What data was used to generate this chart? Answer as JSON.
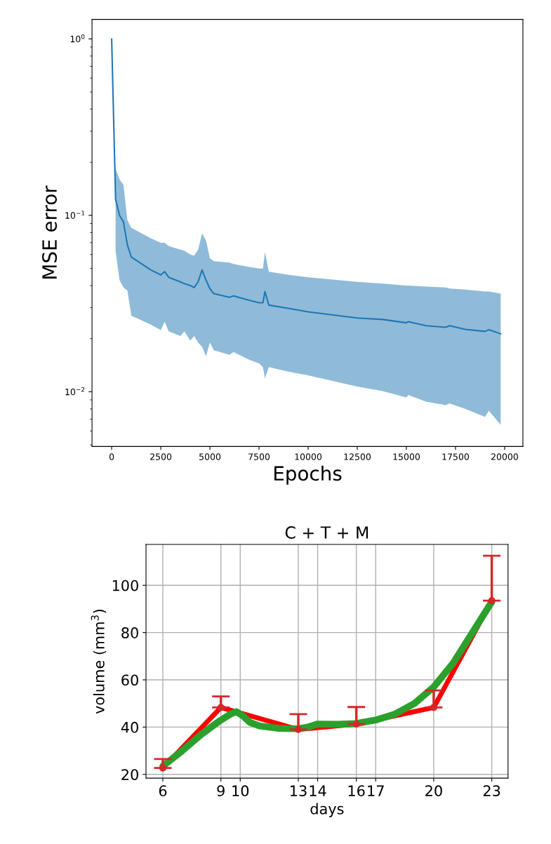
{
  "chart_data": [
    {
      "type": "line",
      "xlabel": "Epochs",
      "ylabel": "MSE error",
      "log": "y",
      "xlim": [
        -1000,
        20930
      ],
      "ylim": [
        0.0049,
        1.29
      ],
      "xticks": [
        0,
        2500,
        5000,
        7500,
        10000,
        12500,
        15000,
        17500,
        20000
      ],
      "yticks": [
        {
          "value": 1,
          "label": "10$^{0}$"
        },
        {
          "value": 0.1,
          "label": "10$^{−1}$"
        },
        {
          "value": 0.01,
          "label": "10$^{−2}$"
        }
      ],
      "grid": false,
      "x": [
        0,
        200,
        400,
        600,
        800,
        1000,
        2000,
        2500,
        2700,
        2900,
        3500,
        3700,
        4000,
        4200,
        4400,
        4600,
        4800,
        5000,
        5200,
        6000,
        6200,
        7000,
        7500,
        7700,
        7800,
        8000,
        9000,
        10000,
        12500,
        13800,
        15000,
        15100,
        16000,
        17000,
        17200,
        18000,
        19000,
        19200,
        19800
      ],
      "series": [
        {
          "color": "#1f77b4",
          "values": [
            1.0,
            0.123,
            0.1,
            0.092,
            0.068,
            0.058,
            0.049,
            0.046,
            0.048,
            0.0446,
            0.042,
            0.041,
            0.04,
            0.039,
            0.042,
            0.049,
            0.043,
            0.0384,
            0.036,
            0.0343,
            0.035,
            0.033,
            0.032,
            0.032,
            0.037,
            0.031,
            0.0297,
            0.0284,
            0.0262,
            0.0257,
            0.0246,
            0.025,
            0.0237,
            0.0232,
            0.0237,
            0.0226,
            0.022,
            0.0225,
            0.0213
          ],
          "lower": [
            null,
            0.063,
            0.043,
            0.039,
            0.0375,
            0.027,
            0.024,
            0.0224,
            0.025,
            0.022,
            0.0207,
            0.022,
            0.0195,
            0.0207,
            0.019,
            0.018,
            0.0159,
            0.019,
            0.0172,
            0.0162,
            0.0168,
            0.0152,
            0.0145,
            0.0138,
            0.0119,
            0.0138,
            0.013,
            0.0124,
            0.0107,
            0.0101,
            0.0093,
            0.0096,
            0.0088,
            0.0084,
            0.0086,
            0.008,
            0.0072,
            0.0078,
            0.0065
          ],
          "upper": [
            null,
            0.185,
            0.16,
            0.149,
            0.094,
            0.085,
            0.074,
            0.07,
            0.07,
            0.067,
            0.064,
            0.063,
            0.06,
            0.059,
            0.064,
            0.079,
            0.072,
            0.057,
            0.055,
            0.054,
            0.053,
            0.051,
            0.05,
            0.05,
            0.062,
            0.048,
            0.046,
            0.0446,
            0.042,
            0.041,
            0.04,
            0.04,
            0.0395,
            0.039,
            0.0385,
            0.038,
            0.037,
            0.037,
            0.036
          ]
        }
      ]
    },
    {
      "type": "line",
      "title": "C + T + M",
      "xlabel": "days",
      "ylabel": "volume (mm$^{3}$)",
      "xlim": [
        5.13,
        23.84
      ],
      "ylim": [
        18.4,
        117.3
      ],
      "xticks": [
        6,
        9,
        10,
        13,
        14,
        16,
        17,
        20,
        23
      ],
      "yticks": [
        20,
        40,
        60,
        80,
        100
      ],
      "grid": true,
      "series": [
        {
          "type": "line",
          "color": "#ff0000",
          "marker": "none",
          "x": [
            6,
            9,
            13,
            16,
            20,
            23
          ],
          "values": [
            22.7,
            48.3,
            39,
            41.3,
            48.3,
            93.5
          ]
        },
        {
          "type": "scatter",
          "color": "#d62728",
          "marker": "circle",
          "x": [
            6,
            9,
            13,
            16,
            20,
            23
          ],
          "values": [
            22.7,
            48.3,
            39,
            41.3,
            48.3,
            93.5
          ],
          "errors": [
            [
              22.7,
              26.5
            ],
            [
              48.3,
              53
            ],
            [
              39,
              45.5
            ],
            [
              41.3,
              48.5
            ],
            [
              48.3,
              55.5
            ],
            [
              93.5,
              112.5
            ]
          ]
        },
        {
          "type": "line",
          "color": "#2ca02c",
          "marker": "none",
          "x": [
            6,
            7,
            8,
            9,
            9.5,
            9.8,
            10.1,
            10.5,
            11,
            12,
            13,
            13.5,
            14,
            15,
            16,
            17,
            18,
            19,
            20,
            21,
            22,
            23
          ],
          "values": [
            23.5,
            30,
            37,
            43,
            45.5,
            46.5,
            45,
            42,
            40.5,
            39.5,
            39.3,
            40,
            41.3,
            41.2,
            41.5,
            43,
            45.5,
            50,
            57,
            67,
            80,
            93
          ]
        }
      ]
    }
  ]
}
